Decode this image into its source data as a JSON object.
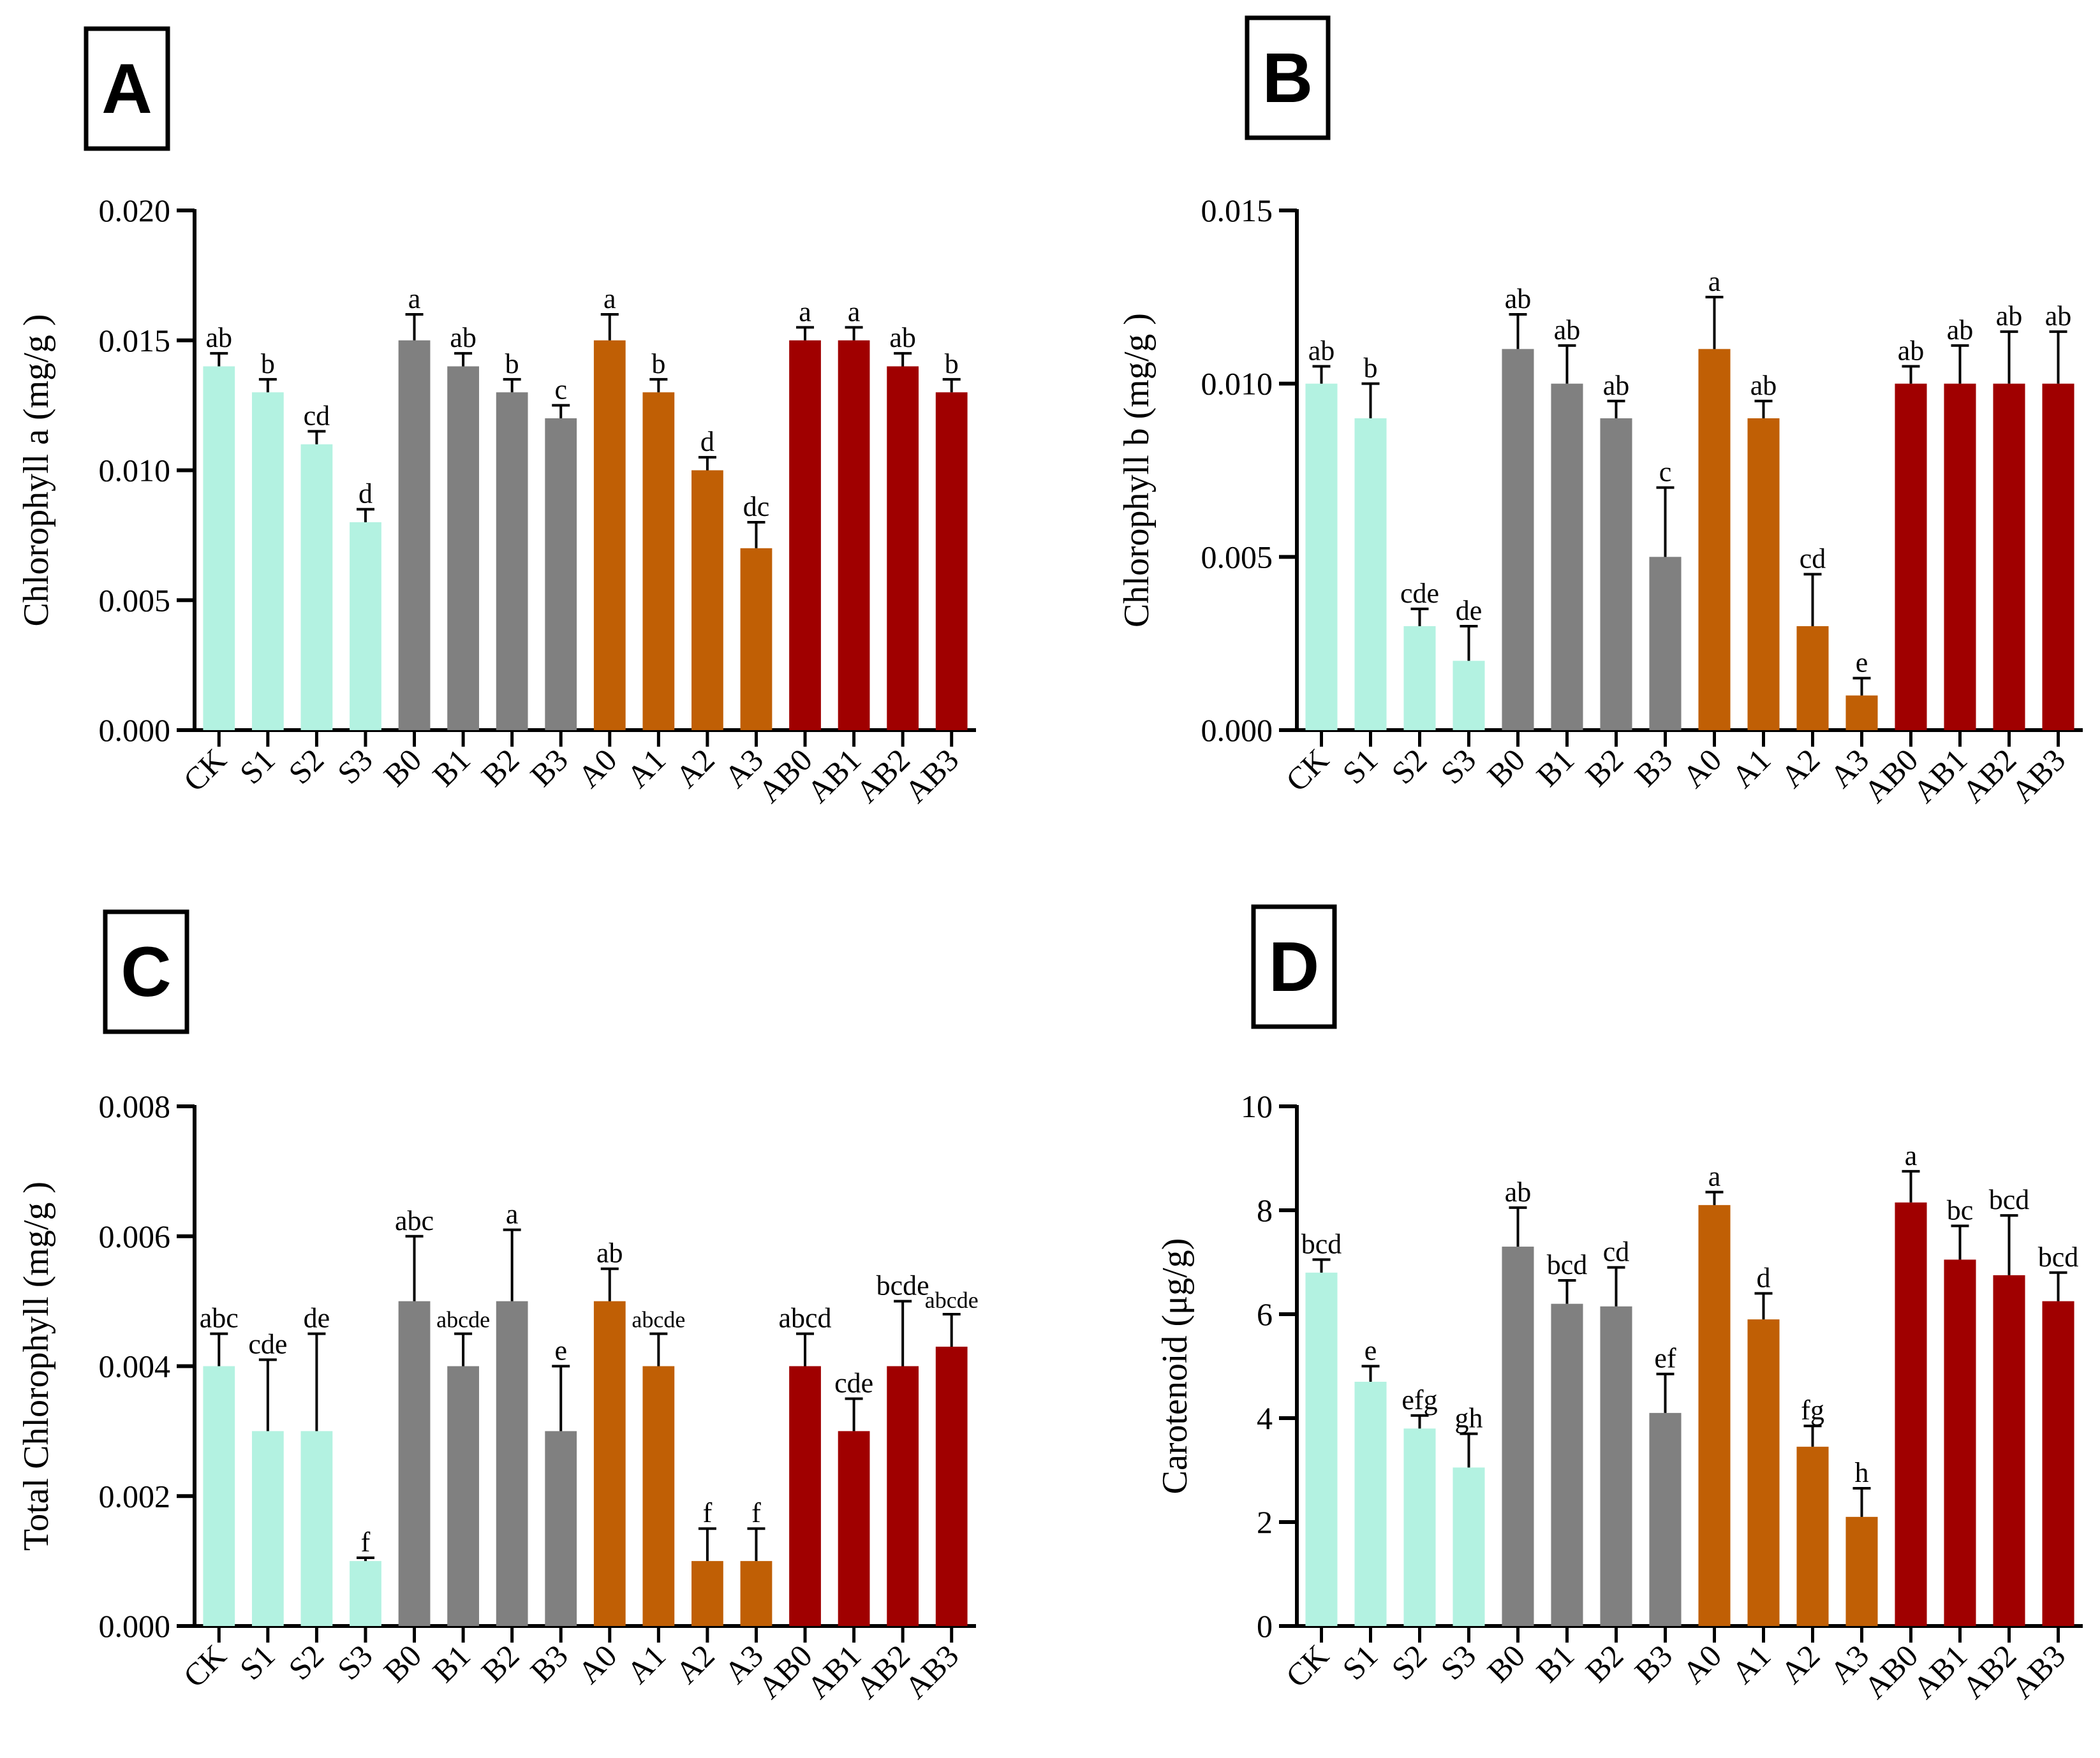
{
  "chart_data": [
    {
      "panel": "A",
      "type": "bar",
      "ylabel": "Chlorophyll a (mg/g )",
      "ylim": [
        0,
        0.02
      ],
      "yticks": [
        "0.000",
        "0.005",
        "0.010",
        "0.015",
        "0.020"
      ],
      "categories": [
        "CK",
        "S1",
        "S2",
        "S3",
        "B0",
        "B1",
        "B2",
        "B3",
        "A0",
        "A1",
        "A2",
        "A3",
        "AB0",
        "AB1",
        "AB2",
        "AB3"
      ],
      "values": [
        0.014,
        0.013,
        0.011,
        0.008,
        0.015,
        0.014,
        0.013,
        0.012,
        0.015,
        0.013,
        0.01,
        0.007,
        0.015,
        0.015,
        0.014,
        0.013
      ],
      "errors": [
        0.0005,
        0.0005,
        0.0005,
        0.0005,
        0.001,
        0.0005,
        0.0005,
        0.0005,
        0.001,
        0.0005,
        0.0005,
        0.001,
        0.0005,
        0.0005,
        0.0005,
        0.0005
      ],
      "letters": [
        "ab",
        "b",
        "cd",
        "d",
        "a",
        "ab",
        "b",
        "c",
        "a",
        "b",
        "d",
        "dc",
        "a",
        "a",
        "ab",
        "b"
      ],
      "group_colors": [
        "#b3f2e1",
        "#808080",
        "#c05f05",
        "#a00000"
      ]
    },
    {
      "panel": "B",
      "type": "bar",
      "ylabel": "Chlorophyll b (mg/g )",
      "ylim": [
        0,
        0.015
      ],
      "yticks": [
        "0.000",
        "0.005",
        "0.010",
        "0.015"
      ],
      "categories": [
        "CK",
        "S1",
        "S2",
        "S3",
        "B0",
        "B1",
        "B2",
        "B3",
        "A0",
        "A1",
        "A2",
        "A3",
        "AB0",
        "AB1",
        "AB2",
        "AB3"
      ],
      "values": [
        0.01,
        0.009,
        0.003,
        0.002,
        0.011,
        0.01,
        0.009,
        0.005,
        0.011,
        0.009,
        0.003,
        0.001,
        0.01,
        0.01,
        0.01,
        0.01
      ],
      "errors": [
        0.0005,
        0.001,
        0.0005,
        0.001,
        0.001,
        0.0011,
        0.0005,
        0.002,
        0.0015,
        0.0005,
        0.0015,
        0.0005,
        0.0005,
        0.0011,
        0.0015,
        0.0015
      ],
      "letters": [
        "ab",
        "b",
        "cde",
        "de",
        "ab",
        "ab",
        "ab",
        "c",
        "a",
        "ab",
        "cd",
        "e",
        "ab",
        "ab",
        "ab",
        "ab"
      ],
      "group_colors": [
        "#b3f2e1",
        "#808080",
        "#c05f05",
        "#a00000"
      ]
    },
    {
      "panel": "C",
      "type": "bar",
      "ylabel": "Total Chlorophyll (mg/g )",
      "ylim": [
        0,
        0.008
      ],
      "yticks": [
        "0.000",
        "0.002",
        "0.004",
        "0.006",
        "0.008"
      ],
      "categories": [
        "CK",
        "S1",
        "S2",
        "S3",
        "B0",
        "B1",
        "B2",
        "B3",
        "A0",
        "A1",
        "A2",
        "A3",
        "AB0",
        "AB1",
        "AB2",
        "AB3"
      ],
      "values": [
        0.004,
        0.003,
        0.003,
        0.001,
        0.005,
        0.004,
        0.005,
        0.003,
        0.005,
        0.004,
        0.001,
        0.001,
        0.004,
        0.003,
        0.004,
        0.0043
      ],
      "errors": [
        0.0005,
        0.0011,
        0.0015,
        5e-05,
        0.001,
        0.0005,
        0.0011,
        0.001,
        0.0005,
        0.0005,
        0.0005,
        0.0005,
        0.0005,
        0.0005,
        0.001,
        0.0005
      ],
      "letters": [
        "abc",
        "cde",
        "de",
        "f",
        "abc",
        "abcde",
        "a",
        "e",
        "ab",
        "abcde",
        "f",
        "f",
        "abcd",
        "cde",
        "bcde",
        "abcde"
      ],
      "group_colors": [
        "#b3f2e1",
        "#808080",
        "#c05f05",
        "#a00000"
      ]
    },
    {
      "panel": "D",
      "type": "bar",
      "ylabel": "Carotenoid (μg/g)",
      "ylim": [
        0,
        10
      ],
      "yticks": [
        "0",
        "2",
        "4",
        "6",
        "8",
        "10"
      ],
      "categories": [
        "CK",
        "S1",
        "S2",
        "S3",
        "B0",
        "B1",
        "B2",
        "B3",
        "A0",
        "A1",
        "A2",
        "A3",
        "AB0",
        "AB1",
        "AB2",
        "AB3"
      ],
      "values": [
        6.8,
        4.7,
        3.8,
        3.05,
        7.3,
        6.2,
        6.15,
        4.1,
        8.1,
        5.9,
        3.45,
        2.1,
        8.15,
        7.05,
        6.75,
        6.25
      ],
      "errors": [
        0.25,
        0.3,
        0.25,
        0.65,
        0.75,
        0.45,
        0.75,
        0.75,
        0.25,
        0.5,
        0.4,
        0.55,
        0.6,
        0.65,
        1.15,
        0.55
      ],
      "letters": [
        "bcd",
        "e",
        "efg",
        "gh",
        "ab",
        "bcd",
        "cd",
        "ef",
        "a",
        "d",
        "fg",
        "h",
        "a",
        "bc",
        "bcd",
        "bcd"
      ],
      "group_colors": [
        "#b3f2e1",
        "#808080",
        "#c05f05",
        "#a00000"
      ]
    }
  ]
}
